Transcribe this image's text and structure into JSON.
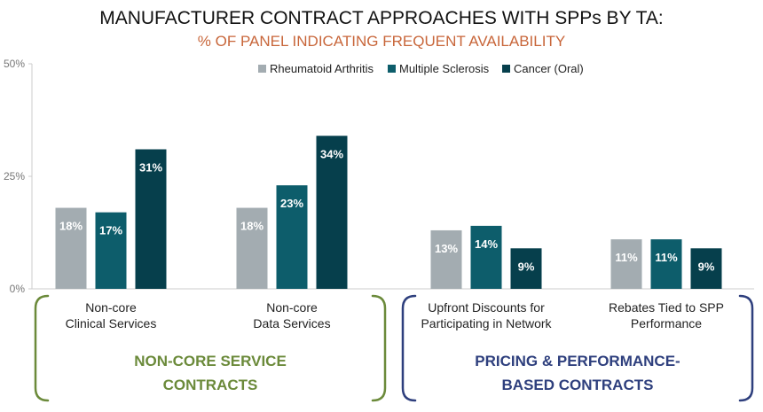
{
  "chart_data": {
    "type": "bar",
    "title": "MANUFACTURER CONTRACT APPROACHES WITH SPPs BY TA:",
    "subtitle": "% OF PANEL INDICATING FREQUENT AVAILABILITY",
    "ylim": [
      0,
      50
    ],
    "yticks": [
      0,
      25,
      50
    ],
    "ytick_labels": [
      "0%",
      "25%",
      "50%"
    ],
    "grid": false,
    "legend_position": "top-right",
    "categories": [
      [
        "Non-core",
        "Clinical Services"
      ],
      [
        "Non-core",
        "Data Services"
      ],
      [
        "Upfront Discounts for",
        "Participating in Network"
      ],
      [
        "Rebates Tied to SPP",
        "Performance"
      ]
    ],
    "series": [
      {
        "name": "Rheumatoid Arthritis",
        "color": "#a3acb1",
        "values": [
          18,
          18,
          13,
          11
        ],
        "labels": [
          "18%",
          "18%",
          "13%",
          "11%"
        ]
      },
      {
        "name": "Multiple Sclerosis",
        "color": "#0d5d6b",
        "values": [
          17,
          23,
          14,
          11
        ],
        "labels": [
          "17%",
          "23%",
          "14%",
          "11%"
        ]
      },
      {
        "name": "Cancer (Oral)",
        "color": "#063f4c",
        "values": [
          31,
          34,
          9,
          9
        ],
        "labels": [
          "31%",
          "34%",
          "9%",
          "9%"
        ]
      }
    ],
    "groups": [
      {
        "title": [
          "NON-CORE SERVICE",
          "CONTRACTS"
        ],
        "color": "#6b8a3a",
        "categories": [
          0,
          1
        ]
      },
      {
        "title": [
          "PRICING & PERFORMANCE-",
          "BASED CONTRACTS"
        ],
        "color": "#2e3f7d",
        "categories": [
          2,
          3
        ]
      }
    ],
    "subtitle_color": "#c8663a",
    "axis_color": "#cccccc"
  }
}
